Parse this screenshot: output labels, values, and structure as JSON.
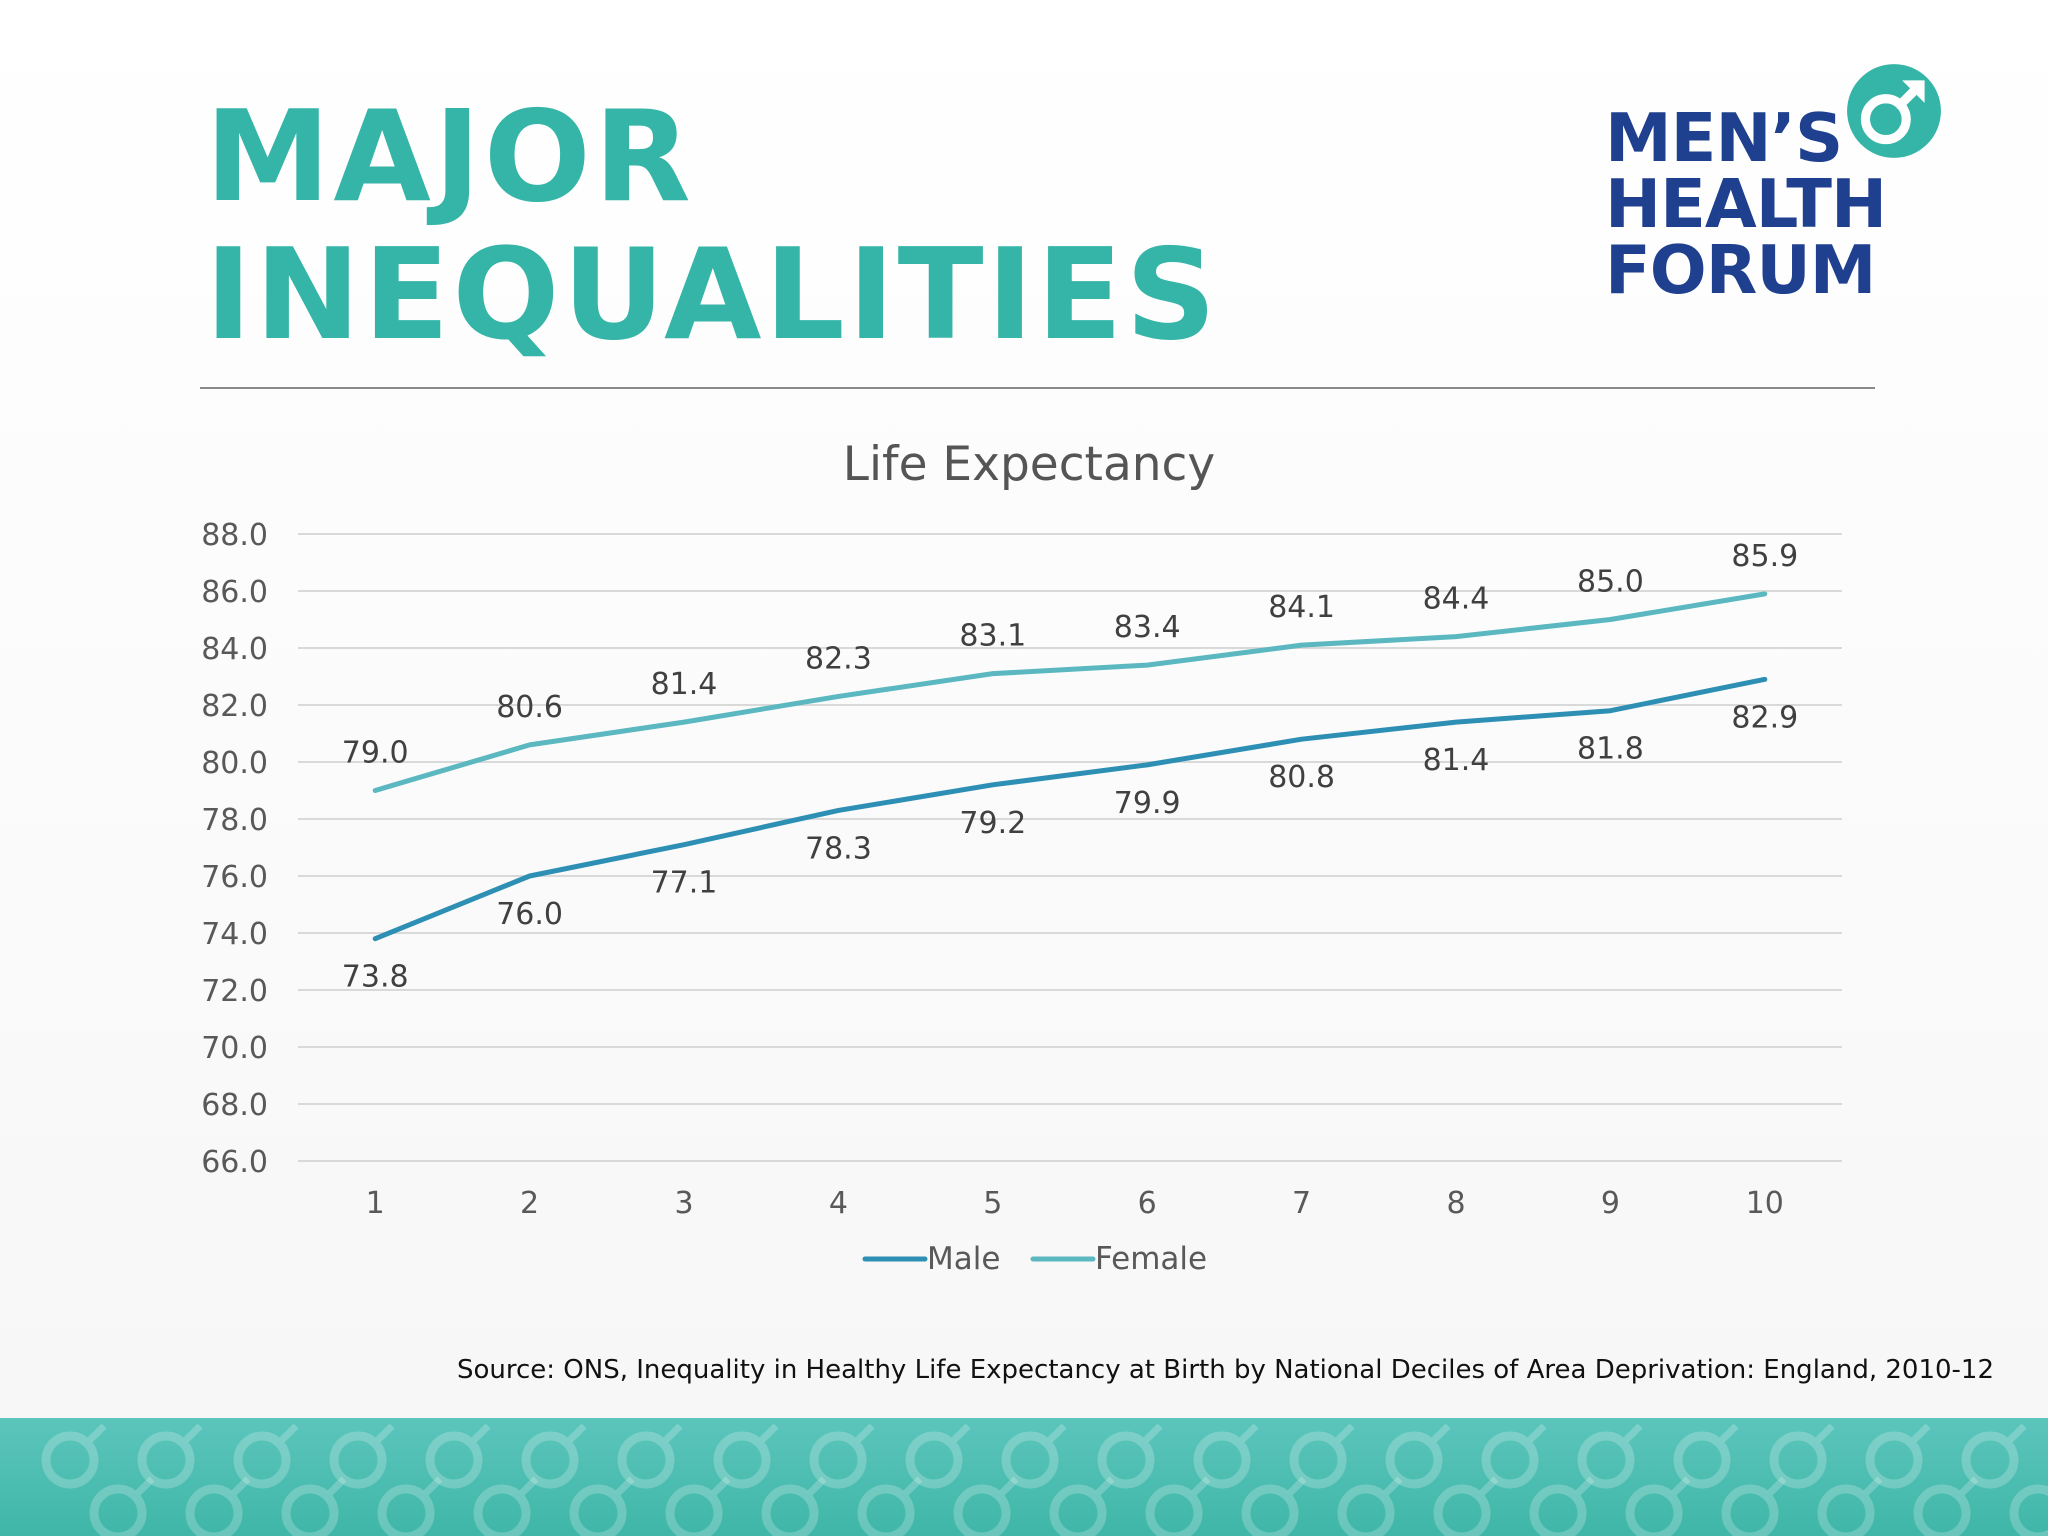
{
  "header": {
    "title_line1": "MAJOR",
    "title_line2": "INEQUALITIES"
  },
  "logo": {
    "line1": "MEN’S",
    "line2": "HEALTH",
    "line3": "FORUM"
  },
  "colors": {
    "title": "#35b5a7",
    "logo": "#1f3f8f",
    "male": "#2e8fb5",
    "female": "#5bb8c0",
    "footer": "#3fb6a8"
  },
  "chart_data": {
    "type": "line",
    "title": "Life Expectancy",
    "categories": [
      "1",
      "2",
      "3",
      "4",
      "5",
      "6",
      "7",
      "8",
      "9",
      "10"
    ],
    "series": [
      {
        "name": "Male",
        "values": [
          73.8,
          76.0,
          77.1,
          78.3,
          79.2,
          79.9,
          80.8,
          81.4,
          81.8,
          82.9
        ],
        "color": "#2e8fb5",
        "label_position": "below"
      },
      {
        "name": "Female",
        "values": [
          79.0,
          80.6,
          81.4,
          82.3,
          83.1,
          83.4,
          84.1,
          84.4,
          85.0,
          85.9
        ],
        "color": "#5bb8c0",
        "label_position": "above"
      }
    ],
    "ylim": [
      66.0,
      88.0
    ],
    "yticks": [
      "66.0",
      "68.0",
      "70.0",
      "72.0",
      "74.0",
      "76.0",
      "78.0",
      "80.0",
      "82.0",
      "84.0",
      "86.0",
      "88.0"
    ],
    "ytick_step": 2.0,
    "grid": true,
    "legend": "bottom",
    "data_labels": true
  },
  "source": "Source: ONS, Inequality in Healthy Life Expectancy at Birth by National Deciles of Area Deprivation: England, 2010-12"
}
